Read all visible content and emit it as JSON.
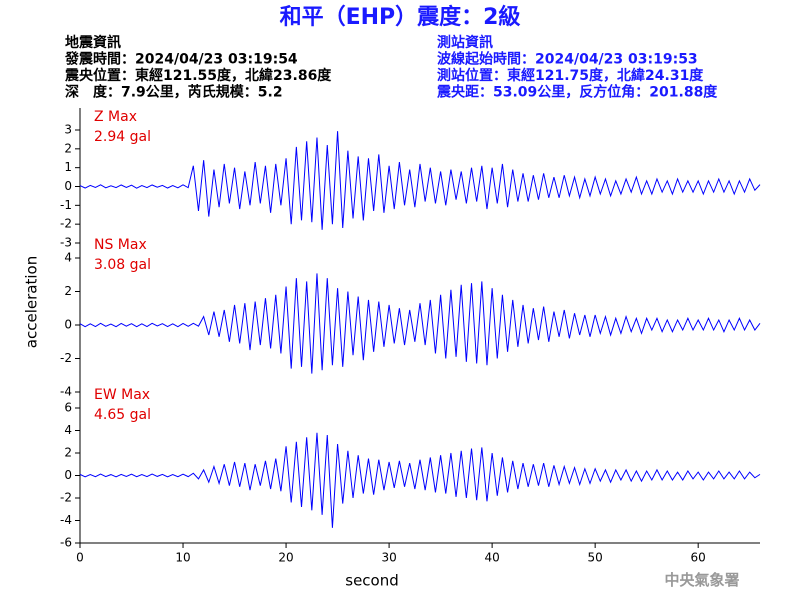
{
  "header": {
    "event_info": [
      "地震資訊",
      "發震時間：2024/04/23 03:19:54",
      "震央位置：東經121.55度，北緯23.86度",
      "深　度：7.9公里，芮氏規模：5.2"
    ],
    "station_info": [
      "測站資訊",
      "波線起始時間：2024/04/23 03:19:53",
      "測站位置：東經121.75度，北緯24.31度",
      "震央距：53.09公里，反方位角：201.88度"
    ],
    "watermark": "中央氣象署"
  },
  "chart_data": {
    "type": "line",
    "title": "和平（EHP）震度：2級",
    "xlabel": "second",
    "ylabel": "acceleration",
    "xlim": [
      0,
      66
    ],
    "xticks": [
      0,
      10,
      20,
      30,
      40,
      50,
      60
    ],
    "x": [
      0,
      0.5,
      1,
      1.5,
      2,
      2.5,
      3,
      3.5,
      4,
      4.5,
      5,
      5.5,
      6,
      6.5,
      7,
      7.5,
      8,
      8.5,
      9,
      9.5,
      10,
      10.5,
      11,
      11.5,
      12,
      12.5,
      13,
      13.5,
      14,
      14.5,
      15,
      15.5,
      16,
      16.5,
      17,
      17.5,
      18,
      18.5,
      19,
      19.5,
      20,
      20.5,
      21,
      21.5,
      22,
      22.5,
      23,
      23.5,
      24,
      24.5,
      25,
      25.5,
      26,
      26.5,
      27,
      27.5,
      28,
      28.5,
      29,
      29.5,
      30,
      30.5,
      31,
      31.5,
      32,
      32.5,
      33,
      33.5,
      34,
      34.5,
      35,
      35.5,
      36,
      36.5,
      37,
      37.5,
      38,
      38.5,
      39,
      39.5,
      40,
      40.5,
      41,
      41.5,
      42,
      42.5,
      43,
      43.5,
      44,
      44.5,
      45,
      45.5,
      46,
      46.5,
      47,
      47.5,
      48,
      48.5,
      49,
      49.5,
      50,
      50.5,
      51,
      51.5,
      52,
      52.5,
      53,
      53.5,
      54,
      54.5,
      55,
      55.5,
      56,
      56.5,
      57,
      57.5,
      58,
      58.5,
      59,
      59.5,
      60,
      60.5,
      61,
      61.5,
      62,
      62.5,
      63,
      63.5,
      64,
      64.5,
      65,
      65.5,
      66
    ],
    "panels": [
      {
        "name": "Z Max",
        "max_label": "2.94 gal",
        "color": "#0000ff",
        "ylim": [
          -3,
          3
        ],
        "yticks": [
          -3,
          -2,
          -1,
          0,
          1,
          2,
          3
        ],
        "values": [
          0.05,
          -0.08,
          0.06,
          -0.05,
          0.09,
          -0.07,
          0.04,
          -0.06,
          0.08,
          -0.05,
          0.07,
          -0.09,
          0.05,
          -0.06,
          0.08,
          -0.04,
          0.06,
          -0.08,
          0.05,
          -0.07,
          0.09,
          -0.06,
          1.1,
          -1.3,
          1.4,
          -1.6,
          0.9,
          -1.1,
          1.2,
          -0.9,
          1.0,
          -1.2,
          0.8,
          -1.0,
          1.3,
          -0.9,
          1.1,
          -1.4,
          1.2,
          -1.0,
          1.5,
          -2.0,
          2.1,
          -1.8,
          2.4,
          -1.9,
          2.6,
          -2.3,
          2.2,
          -2.0,
          2.94,
          -2.2,
          1.9,
          -1.7,
          1.6,
          -1.8,
          1.5,
          -1.3,
          1.7,
          -1.4,
          1.1,
          -1.2,
          1.3,
          -1.0,
          0.9,
          -1.1,
          1.2,
          -0.8,
          1.0,
          -0.9,
          0.8,
          -1.0,
          0.9,
          -0.7,
          0.8,
          -0.9,
          1.0,
          -0.8,
          1.1,
          -1.2,
          1.0,
          -0.9,
          1.2,
          -1.1,
          0.9,
          -0.8,
          0.7,
          -0.8,
          0.6,
          -0.7,
          0.7,
          -0.6,
          0.5,
          -0.6,
          0.6,
          -0.5,
          0.5,
          -0.6,
          0.4,
          -0.5,
          0.5,
          -0.4,
          0.4,
          -0.5,
          0.3,
          -0.4,
          0.4,
          -0.3,
          0.5,
          -0.4,
          0.3,
          -0.4,
          0.4,
          -0.3,
          0.3,
          -0.4,
          0.4,
          -0.3,
          0.3,
          -0.3,
          0.3,
          -0.4,
          0.3,
          -0.3,
          0.4,
          -0.3,
          0.3,
          -0.4,
          0.3,
          -0.3,
          0.4,
          -0.2,
          0.1
        ]
      },
      {
        "name": "NS Max",
        "max_label": "3.08 gal",
        "color": "#0000ff",
        "ylim": [
          -4,
          4
        ],
        "yticks": [
          -4,
          -2,
          0,
          2,
          4
        ],
        "values": [
          0.08,
          -0.1,
          0.07,
          -0.09,
          0.1,
          -0.08,
          0.06,
          -0.1,
          0.09,
          -0.07,
          0.08,
          -0.1,
          0.07,
          -0.09,
          0.1,
          -0.06,
          0.08,
          -0.09,
          0.07,
          -0.1,
          0.09,
          -0.08,
          0.1,
          -0.07,
          0.5,
          -0.6,
          0.8,
          -0.7,
          0.9,
          -1.0,
          1.2,
          -1.1,
          1.3,
          -1.5,
          1.4,
          -1.2,
          1.6,
          -1.4,
          1.8,
          -1.7,
          2.3,
          -2.6,
          2.8,
          -2.5,
          2.6,
          -2.9,
          3.08,
          -2.7,
          2.8,
          -2.4,
          2.2,
          -2.5,
          2.0,
          -1.8,
          1.7,
          -2.1,
          1.5,
          -1.6,
          1.4,
          -1.3,
          1.2,
          -1.1,
          1.0,
          -1.2,
          0.9,
          -1.0,
          1.3,
          -1.2,
          1.5,
          -1.7,
          1.8,
          -2.0,
          2.1,
          -1.9,
          2.4,
          -2.2,
          2.5,
          -2.3,
          2.6,
          -2.4,
          2.2,
          -2.0,
          1.8,
          -1.6,
          1.5,
          -1.3,
          1.2,
          -1.1,
          1.0,
          -0.9,
          1.1,
          -1.0,
          0.8,
          -0.7,
          0.9,
          -0.8,
          0.7,
          -0.6,
          0.6,
          -0.7,
          0.6,
          -0.5,
          0.5,
          -0.6,
          0.4,
          -0.5,
          0.5,
          -0.4,
          0.4,
          -0.5,
          0.4,
          -0.3,
          0.4,
          -0.4,
          0.3,
          -0.4,
          0.3,
          -0.3,
          0.4,
          -0.3,
          0.3,
          -0.3,
          0.4,
          -0.3,
          0.3,
          -0.4,
          0.3,
          -0.3,
          0.4,
          -0.3,
          0.3,
          -0.3,
          0.1
        ]
      },
      {
        "name": "EW Max",
        "max_label": "4.65 gal",
        "color": "#0000ff",
        "ylim": [
          -6,
          6
        ],
        "yticks": [
          -6,
          -4,
          -2,
          0,
          2,
          4,
          6
        ],
        "values": [
          0.1,
          -0.12,
          0.09,
          -0.11,
          0.13,
          -0.1,
          0.08,
          -0.12,
          0.1,
          -0.09,
          0.12,
          -0.11,
          0.09,
          -0.1,
          0.13,
          -0.08,
          0.1,
          -0.12,
          0.09,
          -0.11,
          0.12,
          -0.1,
          0.2,
          -0.3,
          0.5,
          -0.6,
          0.8,
          -0.7,
          1.0,
          -0.9,
          1.2,
          -1.0,
          1.1,
          -1.3,
          1.0,
          -0.9,
          1.3,
          -1.2,
          1.5,
          -1.4,
          2.6,
          -2.4,
          3.0,
          -2.8,
          3.4,
          -3.1,
          3.8,
          -3.5,
          3.6,
          -4.65,
          2.8,
          -2.5,
          2.2,
          -2.0,
          1.8,
          -1.6,
          1.5,
          -1.7,
          1.4,
          -1.3,
          1.2,
          -1.1,
          1.3,
          -1.0,
          1.1,
          -1.2,
          1.4,
          -1.3,
          1.6,
          -1.5,
          1.8,
          -1.6,
          2.0,
          -1.9,
          2.2,
          -2.0,
          2.4,
          -2.2,
          2.5,
          -2.3,
          2.0,
          -1.8,
          1.6,
          -1.5,
          1.3,
          -1.2,
          1.1,
          -1.0,
          1.0,
          -0.9,
          1.1,
          -1.0,
          0.9,
          -0.8,
          0.8,
          -0.7,
          0.7,
          -0.8,
          0.6,
          -0.7,
          0.6,
          -0.5,
          0.5,
          -0.6,
          0.5,
          -0.4,
          0.5,
          -0.5,
          0.4,
          -0.5,
          0.4,
          -0.4,
          0.5,
          -0.4,
          0.4,
          -0.4,
          0.3,
          -0.4,
          0.4,
          -0.3,
          0.3,
          -0.4,
          0.3,
          -0.3,
          0.4,
          -0.3,
          0.3,
          -0.3,
          0.4,
          -0.3,
          0.3,
          -0.2,
          0.1
        ]
      }
    ]
  }
}
